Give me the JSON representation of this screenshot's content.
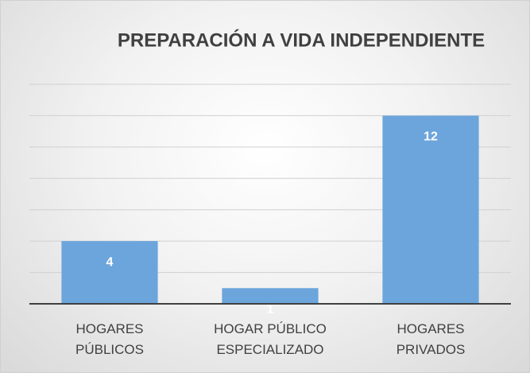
{
  "chart_data": {
    "type": "bar",
    "title": "PREPARACIÓN A VIDA INDEPENDIENTE",
    "categories": [
      "HOGARES PÚBLICOS",
      "HOGAR PÚBLICO ESPECIALIZADO",
      "HOGARES PRIVADOS"
    ],
    "values": [
      4,
      1,
      12
    ],
    "color": "#6ca5dc",
    "ylim": [
      0,
      14
    ],
    "yticks": [
      0,
      2,
      4,
      6,
      8,
      10,
      12,
      14
    ],
    "grid": true
  }
}
